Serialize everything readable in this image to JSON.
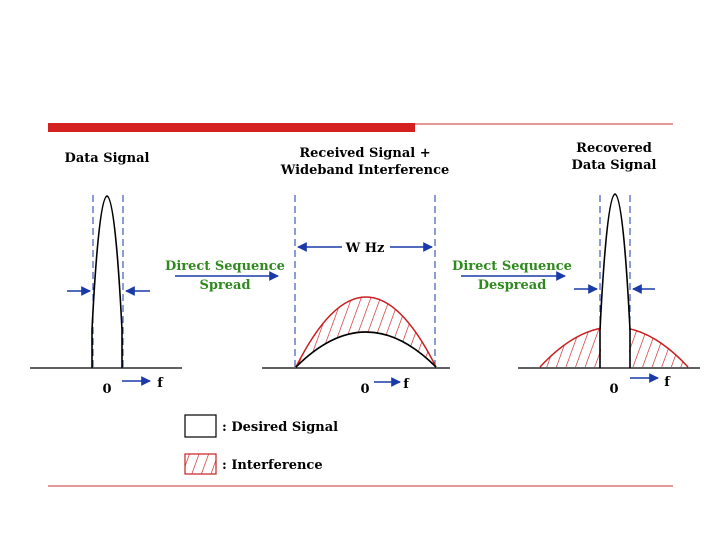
{
  "colors": {
    "accent_bar": "#d42020",
    "accent_line": "#cc3030",
    "interference": "#c82020",
    "guide": "#1a3aa8",
    "arrow": "#1a3aa8",
    "process_text": "#2f8a1e",
    "ink": "#000000"
  },
  "panels": {
    "data_signal": {
      "title": "Data Signal",
      "zero": "0",
      "f": "f"
    },
    "received": {
      "title_line1": "Received Signal +",
      "title_line2": "Wideband Interference",
      "bandwidth": "W Hz",
      "zero": "0",
      "f": "f"
    },
    "recovered": {
      "title_line1": "Recovered",
      "title_line2": "Data Signal",
      "zero": "0",
      "f": "f"
    }
  },
  "process": {
    "spread_line1": "Direct Sequence",
    "spread_line2": "Spread",
    "despread_line1": "Direct Sequence",
    "despread_line2": "Despread"
  },
  "legend": {
    "desired": ": Desired Signal",
    "interference": ": Interference"
  }
}
